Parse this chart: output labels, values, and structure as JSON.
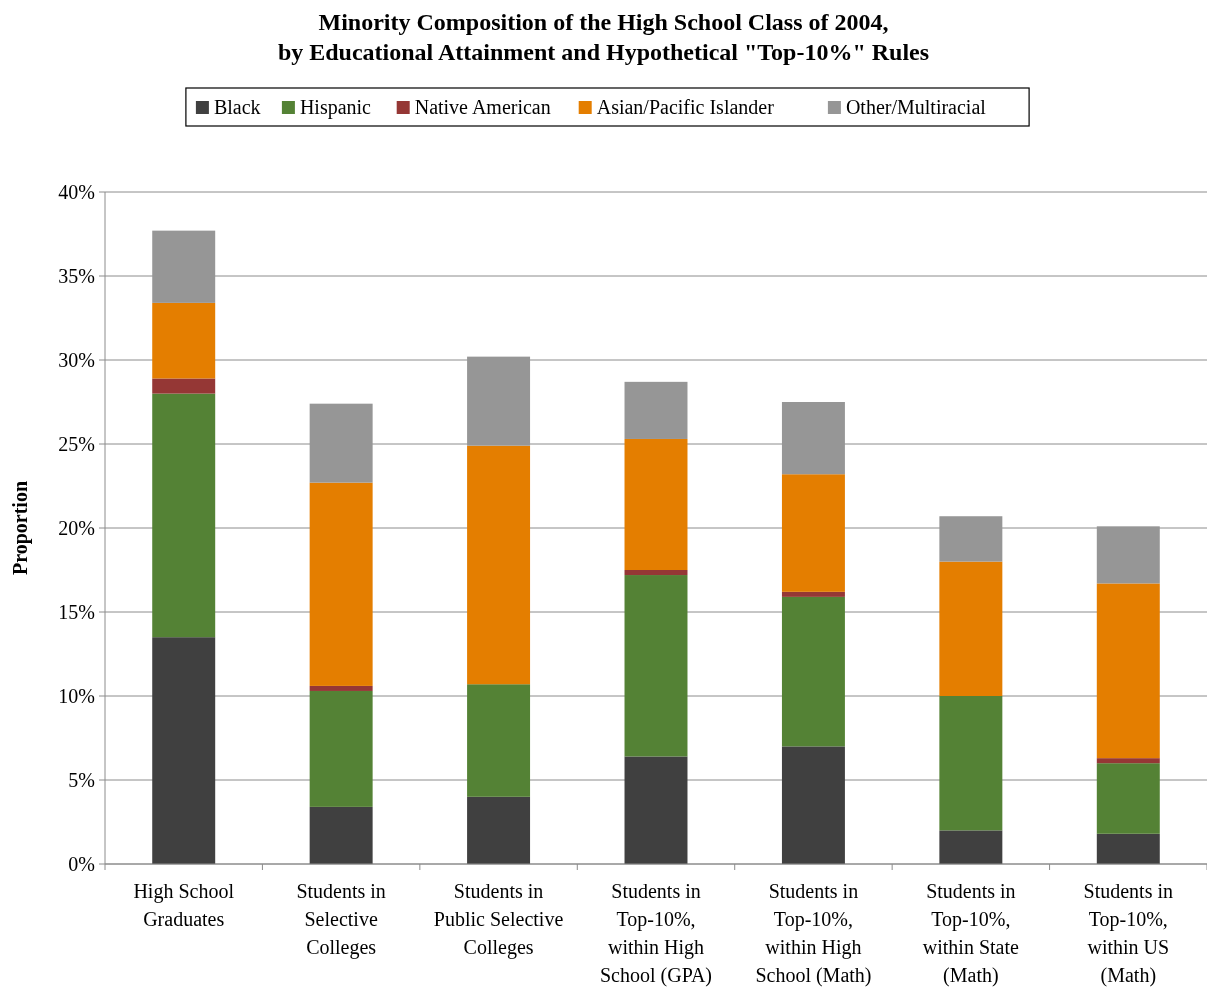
{
  "chart_data": {
    "type": "bar",
    "stacked": true,
    "title": "Minority Composition of the High School Class of 2004,\nby Educational Attainment and Hypothetical \"Top-10%\" Rules",
    "ylabel": "Proportion",
    "categories": [
      "High School\nGraduates",
      "Students in\nSelective\nColleges",
      "Students in\nPublic Selective\nColleges",
      "Students in\nTop-10%,\nwithin High\nSchool (GPA)",
      "Students in\nTop-10%,\nwithin High\nSchool (Math)",
      "Students in\nTop-10%,\nwithin State\n(Math)",
      "Students in\nTop-10%,\nwithin US\n(Math)"
    ],
    "series": [
      {
        "name": "Black",
        "color": "#404040",
        "values": [
          13.5,
          3.4,
          4.0,
          6.4,
          7.0,
          2.0,
          1.8
        ]
      },
      {
        "name": "Hispanic",
        "color": "#548235",
        "values": [
          14.5,
          6.9,
          6.7,
          10.8,
          8.9,
          8.0,
          4.2
        ]
      },
      {
        "name": "Native American",
        "color": "#953735",
        "values": [
          0.9,
          0.3,
          0,
          0.3,
          0.3,
          0,
          0.3
        ]
      },
      {
        "name": "Asian/Pacific Islander",
        "color": "#e47e00",
        "values": [
          4.5,
          12.1,
          14.2,
          7.8,
          7.0,
          8.0,
          10.4
        ]
      },
      {
        "name": "Other/Multiracial",
        "color": "#969696",
        "values": [
          4.3,
          4.7,
          5.3,
          3.4,
          4.3,
          2.7,
          3.4
        ]
      }
    ],
    "ylim": [
      0,
      40
    ],
    "yticks": [
      {
        "value": 0,
        "label": "0%"
      },
      {
        "value": 5,
        "label": "5%"
      },
      {
        "value": 10,
        "label": "10%"
      },
      {
        "value": 15,
        "label": "15%"
      },
      {
        "value": 20,
        "label": "20%"
      },
      {
        "value": 25,
        "label": "25%"
      },
      {
        "value": 30,
        "label": "30%"
      },
      {
        "value": 35,
        "label": "35%"
      },
      {
        "value": 40,
        "label": "40%"
      }
    ],
    "grid": "y",
    "legend": "top"
  }
}
